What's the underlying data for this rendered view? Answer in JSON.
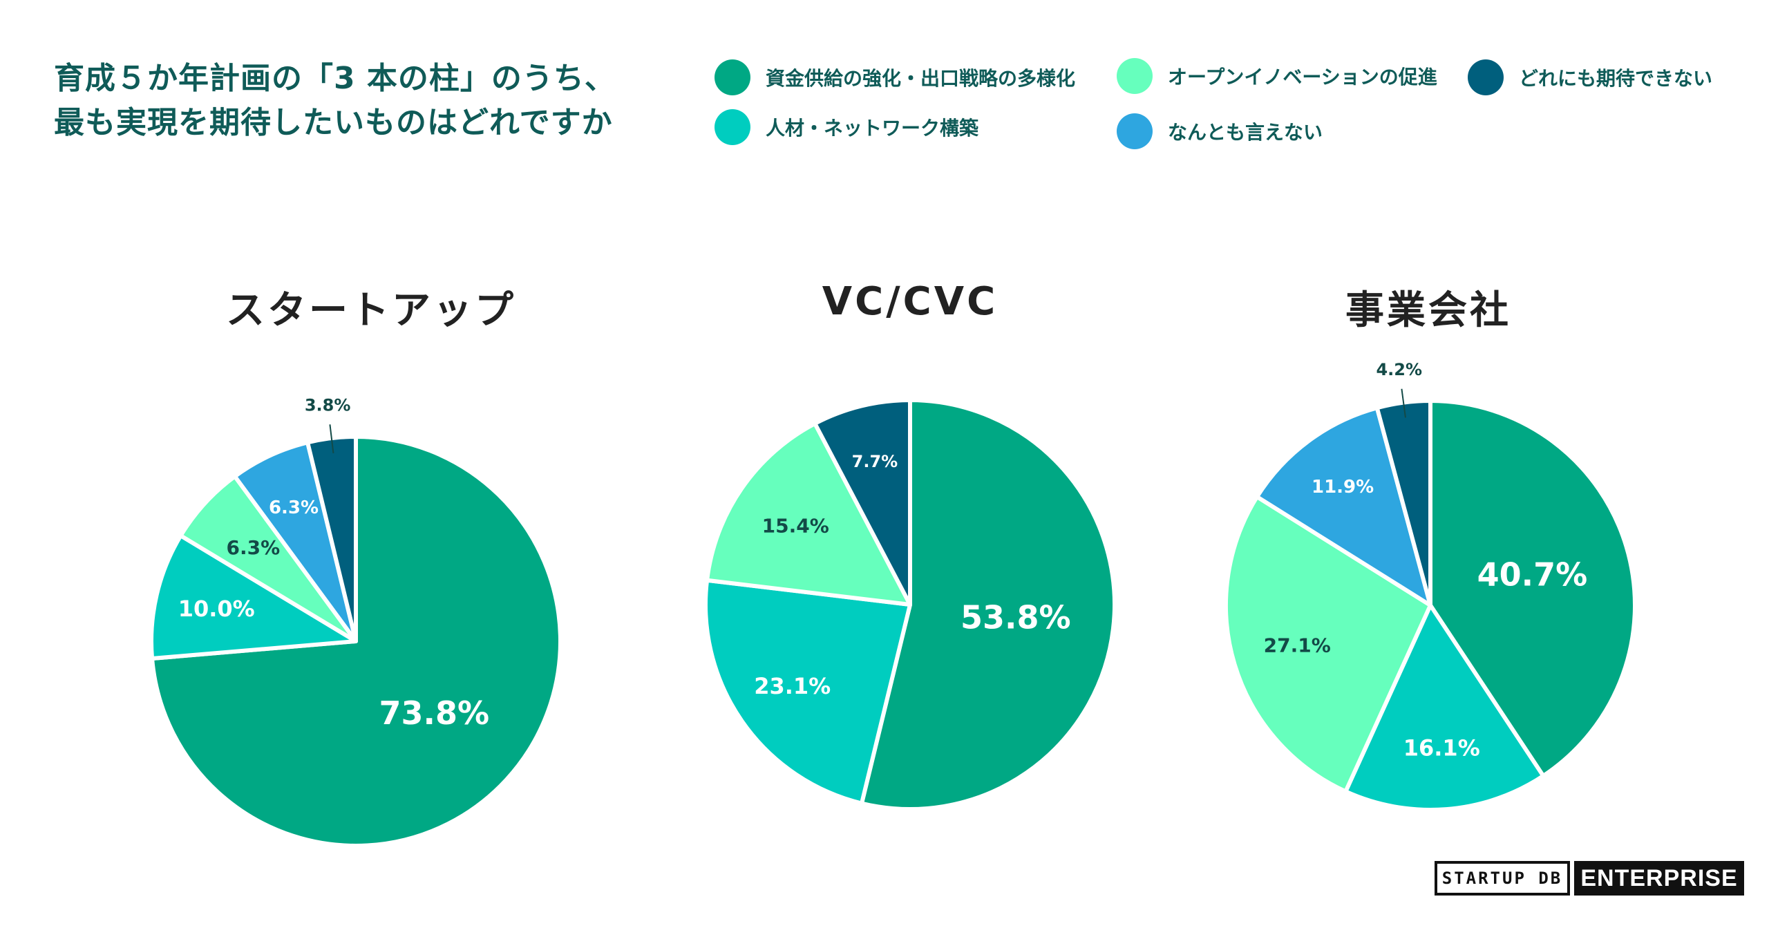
{
  "title": {
    "line1": "育成５か年計画の「3 本の柱」のうち、",
    "line2": "最も実現を期待したいものはどれですか"
  },
  "legend": [
    {
      "label": "資金供給の強化・出口戦略の多様化",
      "color": "#00a884"
    },
    {
      "label": "人材・ネットワーク構築",
      "color": "#00cdbf"
    },
    {
      "label": "オープンイノベーションの促進",
      "color": "#66ffbd"
    },
    {
      "label": "なんとも言えない",
      "color": "#2ea6e0"
    },
    {
      "label": "どれにも期待できない",
      "color": "#005f7d"
    }
  ],
  "chart_data": [
    {
      "type": "pie",
      "title": "スタートアップ",
      "categories": [
        "資金供給の強化・出口戦略の多様化",
        "人材・ネットワーク構築",
        "オープンイノベーションの促進",
        "なんとも言えない",
        "どれにも期待できない"
      ],
      "values": [
        73.8,
        10.0,
        6.3,
        6.3,
        3.8
      ],
      "labels": [
        "73.8%",
        "10.0%",
        "6.3%",
        "6.3%",
        "3.8%"
      ]
    },
    {
      "type": "pie",
      "title": "VC/CVC",
      "categories": [
        "資金供給の強化・出口戦略の多様化",
        "人材・ネットワーク構築",
        "オープンイノベーションの促進",
        "なんとも言えない",
        "どれにも期待できない"
      ],
      "values": [
        53.8,
        23.1,
        15.4,
        0,
        7.7
      ],
      "labels": [
        "53.8%",
        "23.1%",
        "15.4%",
        "",
        "7.7%"
      ]
    },
    {
      "type": "pie",
      "title": "事業会社",
      "categories": [
        "資金供給の強化・出口戦略の多様化",
        "人材・ネットワーク構築",
        "オープンイノベーションの促進",
        "なんとも言えない",
        "どれにも期待できない"
      ],
      "values": [
        40.7,
        16.1,
        27.1,
        11.9,
        4.2
      ],
      "labels": [
        "40.7%",
        "16.1%",
        "27.1%",
        "11.9%",
        "4.2%"
      ]
    }
  ],
  "logo": {
    "left": "STARTUP DB",
    "right": "ENTERPRISE"
  }
}
